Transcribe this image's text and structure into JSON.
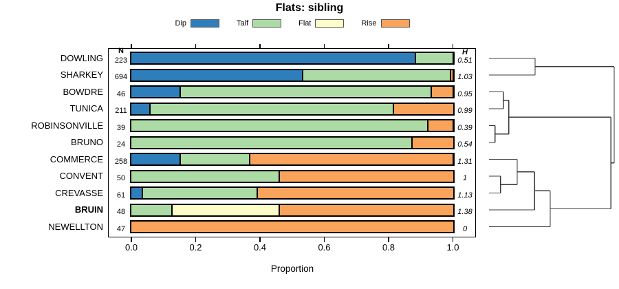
{
  "title": "Flats: sibling",
  "legend": [
    {
      "label": "Dip",
      "color": "#2E7EBB"
    },
    {
      "label": "Talf",
      "color": "#ACDBA5"
    },
    {
      "label": "Flat",
      "color": "#FEFEC8"
    },
    {
      "label": "Rise",
      "color": "#F9A35B"
    }
  ],
  "columns": {
    "n_header": "N",
    "h_header": "H"
  },
  "chart_data": {
    "type": "bar",
    "orientation": "horizontal-stacked",
    "xlabel": "Proportion",
    "xlim": [
      0,
      1
    ],
    "x_ticks": [
      {
        "label": "0.0",
        "value": 0.0
      },
      {
        "label": "0.2",
        "value": 0.2
      },
      {
        "label": "0.4",
        "value": 0.4
      },
      {
        "label": "0.6",
        "value": 0.6
      },
      {
        "label": "0.8",
        "value": 0.8
      },
      {
        "label": "1.0",
        "value": 1.0
      }
    ],
    "series_order": [
      "Dip",
      "Talf",
      "Flat",
      "Rise"
    ],
    "rows": [
      {
        "label": "DOWLING",
        "n": "223",
        "h": "0.51",
        "segments": {
          "Dip": 0.885,
          "Talf": 0.115
        }
      },
      {
        "label": "SHARKEY",
        "n": "694",
        "h": "1.03",
        "segments": {
          "Dip": 0.535,
          "Talf": 0.46,
          "Rise": 0.005
        }
      },
      {
        "label": "BOWDRE",
        "n": "46",
        "h": "0.95",
        "segments": {
          "Dip": 0.152,
          "Talf": 0.783,
          "Rise": 0.065
        }
      },
      {
        "label": "TUNICA",
        "n": "211",
        "h": "0.99",
        "segments": {
          "Dip": 0.057,
          "Talf": 0.759,
          "Rise": 0.184
        }
      },
      {
        "label": "ROBINSONVILLE",
        "n": "39",
        "h": "0.39",
        "segments": {
          "Talf": 0.923,
          "Rise": 0.077
        }
      },
      {
        "label": "BRUNO",
        "n": "24",
        "h": "0.54",
        "segments": {
          "Talf": 0.875,
          "Rise": 0.125
        }
      },
      {
        "label": "COMMERCE",
        "n": "258",
        "h": "1.31",
        "segments": {
          "Dip": 0.151,
          "Talf": 0.213,
          "Rise": 0.636
        }
      },
      {
        "label": "CONVENT",
        "n": "50",
        "h": "1",
        "segments": {
          "Talf": 0.46,
          "Rise": 0.54
        }
      },
      {
        "label": "CREVASSE",
        "n": "61",
        "h": "1.13",
        "segments": {
          "Dip": 0.033,
          "Talf": 0.356,
          "Rise": 0.611
        }
      },
      {
        "label": "BRUIN",
        "n": "48",
        "h": "1.38",
        "bold": true,
        "segments": {
          "Talf": 0.125,
          "Flat": 0.333,
          "Rise": 0.542
        }
      },
      {
        "label": "NEWELLTON",
        "n": "47",
        "h": "0",
        "segments": {
          "Rise": 1.0
        }
      }
    ],
    "dendrogram": {
      "h": 1.0,
      "children": [
        {
          "h": 0.368,
          "children": [
            {
              "leaf": "DOWLING"
            },
            {
              "leaf": "SHARKEY"
            }
          ]
        },
        {
          "h": 0.973,
          "children": [
            {
              "h": 0.159,
              "children": [
                {
                  "h": 0.115,
                  "children": [
                    {
                      "leaf": "BOWDRE"
                    },
                    {
                      "leaf": "TUNICA"
                    }
                  ]
                },
                {
                  "h": 0.049,
                  "children": [
                    {
                      "leaf": "ROBINSONVILLE"
                    },
                    {
                      "leaf": "BRUNO"
                    }
                  ]
                }
              ]
            },
            {
              "h": 0.489,
              "children": [
                {
                  "h": 0.363,
                  "children": [
                    {
                      "h": 0.225,
                      "children": [
                        {
                          "leaf": "COMMERCE"
                        },
                        {
                          "h": 0.093,
                          "children": [
                            {
                              "leaf": "CONVENT"
                            },
                            {
                              "leaf": "CREVASSE"
                            }
                          ]
                        }
                      ]
                    },
                    {
                      "leaf": "BRUIN"
                    }
                  ]
                },
                {
                  "leaf": "NEWELLTON"
                }
              ]
            }
          ]
        }
      ]
    }
  }
}
